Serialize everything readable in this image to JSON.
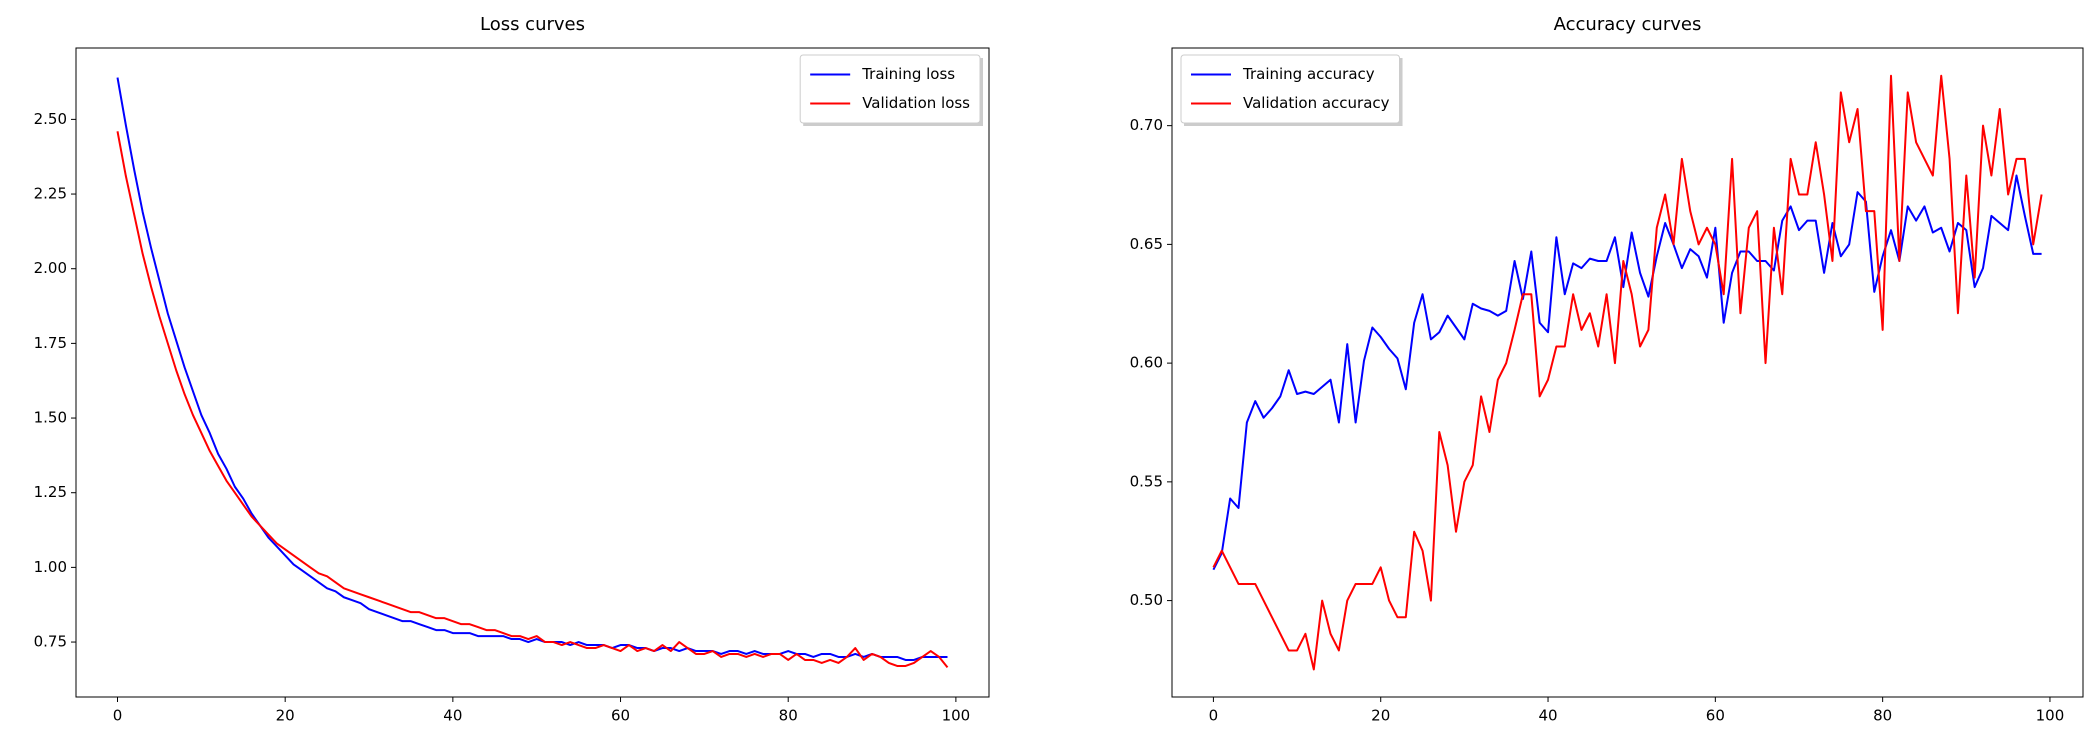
{
  "chart_data": [
    {
      "type": "line",
      "title": "Loss curves",
      "x": [
        0,
        1,
        2,
        3,
        4,
        5,
        6,
        7,
        8,
        9,
        10,
        11,
        12,
        13,
        14,
        15,
        16,
        17,
        18,
        19,
        20,
        21,
        22,
        23,
        24,
        25,
        26,
        27,
        28,
        29,
        30,
        31,
        32,
        33,
        34,
        35,
        36,
        37,
        38,
        39,
        40,
        41,
        42,
        43,
        44,
        45,
        46,
        47,
        48,
        49,
        50,
        51,
        52,
        53,
        54,
        55,
        56,
        57,
        58,
        59,
        60,
        61,
        62,
        63,
        64,
        65,
        66,
        67,
        68,
        69,
        70,
        71,
        72,
        73,
        74,
        75,
        76,
        77,
        78,
        79,
        80,
        81,
        82,
        83,
        84,
        85,
        86,
        87,
        88,
        89,
        90,
        91,
        92,
        93,
        94,
        95,
        96,
        97,
        98,
        99
      ],
      "series": [
        {
          "name": "Training loss",
          "color": "#0000ff",
          "values": [
            2.64,
            2.48,
            2.33,
            2.19,
            2.07,
            1.96,
            1.85,
            1.76,
            1.67,
            1.59,
            1.51,
            1.45,
            1.38,
            1.33,
            1.27,
            1.23,
            1.18,
            1.14,
            1.1,
            1.07,
            1.04,
            1.01,
            0.99,
            0.97,
            0.95,
            0.93,
            0.92,
            0.9,
            0.89,
            0.88,
            0.86,
            0.85,
            0.84,
            0.83,
            0.82,
            0.82,
            0.81,
            0.8,
            0.79,
            0.79,
            0.78,
            0.78,
            0.78,
            0.77,
            0.77,
            0.77,
            0.77,
            0.76,
            0.76,
            0.75,
            0.76,
            0.75,
            0.75,
            0.75,
            0.74,
            0.75,
            0.74,
            0.74,
            0.74,
            0.73,
            0.74,
            0.74,
            0.73,
            0.73,
            0.72,
            0.73,
            0.73,
            0.72,
            0.73,
            0.72,
            0.72,
            0.72,
            0.71,
            0.72,
            0.72,
            0.71,
            0.72,
            0.71,
            0.71,
            0.71,
            0.72,
            0.71,
            0.71,
            0.7,
            0.71,
            0.71,
            0.7,
            0.7,
            0.71,
            0.7,
            0.71,
            0.7,
            0.7,
            0.7,
            0.69,
            0.69,
            0.7,
            0.7,
            0.7,
            0.7
          ]
        },
        {
          "name": "Validation loss",
          "color": "#ff0000",
          "values": [
            2.46,
            2.31,
            2.18,
            2.05,
            1.94,
            1.84,
            1.75,
            1.66,
            1.58,
            1.51,
            1.45,
            1.39,
            1.34,
            1.29,
            1.25,
            1.21,
            1.17,
            1.14,
            1.11,
            1.08,
            1.06,
            1.04,
            1.02,
            1.0,
            0.98,
            0.97,
            0.95,
            0.93,
            0.92,
            0.91,
            0.9,
            0.89,
            0.88,
            0.87,
            0.86,
            0.85,
            0.85,
            0.84,
            0.83,
            0.83,
            0.82,
            0.81,
            0.81,
            0.8,
            0.79,
            0.79,
            0.78,
            0.77,
            0.77,
            0.76,
            0.77,
            0.75,
            0.75,
            0.74,
            0.75,
            0.74,
            0.73,
            0.73,
            0.74,
            0.73,
            0.72,
            0.74,
            0.72,
            0.73,
            0.72,
            0.74,
            0.72,
            0.75,
            0.73,
            0.71,
            0.71,
            0.72,
            0.7,
            0.71,
            0.71,
            0.7,
            0.71,
            0.7,
            0.71,
            0.71,
            0.69,
            0.71,
            0.69,
            0.69,
            0.68,
            0.69,
            0.68,
            0.7,
            0.73,
            0.69,
            0.71,
            0.7,
            0.68,
            0.67,
            0.67,
            0.68,
            0.7,
            0.72,
            0.7,
            0.665
          ]
        }
      ],
      "xlim": [
        -4.95,
        103.95
      ],
      "xticks": [
        0,
        20,
        40,
        60,
        80,
        100
      ],
      "ylim": [
        0.566,
        2.739
      ],
      "yticks": [
        {
          "value": 0.75,
          "label": "0.75"
        },
        {
          "value": 1.0,
          "label": "1.00"
        },
        {
          "value": 1.25,
          "label": "1.25"
        },
        {
          "value": 1.5,
          "label": "1.50"
        },
        {
          "value": 1.75,
          "label": "1.75"
        },
        {
          "value": 2.0,
          "label": "2.00"
        },
        {
          "value": 2.25,
          "label": "2.25"
        },
        {
          "value": 2.5,
          "label": "2.50"
        }
      ],
      "legend": "upper right"
    },
    {
      "type": "line",
      "title": "Accuracy curves",
      "x": [
        0,
        1,
        2,
        3,
        4,
        5,
        6,
        7,
        8,
        9,
        10,
        11,
        12,
        13,
        14,
        15,
        16,
        17,
        18,
        19,
        20,
        21,
        22,
        23,
        24,
        25,
        26,
        27,
        28,
        29,
        30,
        31,
        32,
        33,
        34,
        35,
        36,
        37,
        38,
        39,
        40,
        41,
        42,
        43,
        44,
        45,
        46,
        47,
        48,
        49,
        50,
        51,
        52,
        53,
        54,
        55,
        56,
        57,
        58,
        59,
        60,
        61,
        62,
        63,
        64,
        65,
        66,
        67,
        68,
        69,
        70,
        71,
        72,
        73,
        74,
        75,
        76,
        77,
        78,
        79,
        80,
        81,
        82,
        83,
        84,
        85,
        86,
        87,
        88,
        89,
        90,
        91,
        92,
        93,
        94,
        95,
        96,
        97,
        98,
        99
      ],
      "series": [
        {
          "name": "Training accuracy",
          "color": "#0000ff",
          "values": [
            0.513,
            0.52,
            0.543,
            0.539,
            0.575,
            0.584,
            0.577,
            0.581,
            0.586,
            0.597,
            0.587,
            0.588,
            0.587,
            0.59,
            0.593,
            0.575,
            0.608,
            0.575,
            0.601,
            0.615,
            0.611,
            0.606,
            0.602,
            0.589,
            0.617,
            0.629,
            0.61,
            0.613,
            0.62,
            0.615,
            0.61,
            0.625,
            0.623,
            0.622,
            0.62,
            0.622,
            0.643,
            0.627,
            0.647,
            0.617,
            0.613,
            0.653,
            0.629,
            0.642,
            0.64,
            0.644,
            0.643,
            0.643,
            0.653,
            0.632,
            0.655,
            0.638,
            0.628,
            0.645,
            0.659,
            0.65,
            0.64,
            0.648,
            0.645,
            0.636,
            0.657,
            0.617,
            0.638,
            0.647,
            0.647,
            0.643,
            0.643,
            0.639,
            0.66,
            0.666,
            0.656,
            0.66,
            0.66,
            0.638,
            0.659,
            0.645,
            0.65,
            0.672,
            0.668,
            0.63,
            0.645,
            0.656,
            0.643,
            0.666,
            0.66,
            0.666,
            0.655,
            0.657,
            0.647,
            0.659,
            0.656,
            0.632,
            0.64,
            0.662,
            0.659,
            0.656,
            0.679,
            0.662,
            0.646,
            0.646
          ]
        },
        {
          "name": "Validation accuracy",
          "color": "#ff0000",
          "values": [
            0.514,
            0.521,
            0.514,
            0.507,
            0.507,
            0.507,
            0.5,
            0.493,
            0.486,
            0.479,
            0.479,
            0.486,
            0.471,
            0.5,
            0.486,
            0.479,
            0.5,
            0.507,
            0.507,
            0.507,
            0.514,
            0.5,
            0.493,
            0.493,
            0.529,
            0.521,
            0.5,
            0.571,
            0.557,
            0.529,
            0.55,
            0.557,
            0.586,
            0.571,
            0.593,
            0.6,
            0.614,
            0.629,
            0.629,
            0.586,
            0.593,
            0.607,
            0.607,
            0.629,
            0.614,
            0.621,
            0.607,
            0.629,
            0.6,
            0.643,
            0.629,
            0.607,
            0.614,
            0.657,
            0.671,
            0.65,
            0.686,
            0.664,
            0.65,
            0.657,
            0.65,
            0.629,
            0.686,
            0.621,
            0.657,
            0.664,
            0.6,
            0.657,
            0.629,
            0.686,
            0.671,
            0.671,
            0.693,
            0.671,
            0.643,
            0.714,
            0.693,
            0.707,
            0.664,
            0.664,
            0.614,
            0.721,
            0.643,
            0.714,
            0.693,
            0.686,
            0.679,
            0.721,
            0.686,
            0.621,
            0.679,
            0.636,
            0.7,
            0.679,
            0.707,
            0.671,
            0.686,
            0.686,
            0.65,
            0.671
          ]
        }
      ],
      "xlim": [
        -4.95,
        103.95
      ],
      "xticks": [
        0,
        20,
        40,
        60,
        80,
        100
      ],
      "ylim": [
        0.4594,
        0.7327
      ],
      "yticks": [
        {
          "value": 0.5,
          "label": "0.50"
        },
        {
          "value": 0.55,
          "label": "0.55"
        },
        {
          "value": 0.6,
          "label": "0.60"
        },
        {
          "value": 0.65,
          "label": "0.65"
        },
        {
          "value": 0.7,
          "label": "0.70"
        }
      ],
      "legend": "upper left"
    }
  ]
}
